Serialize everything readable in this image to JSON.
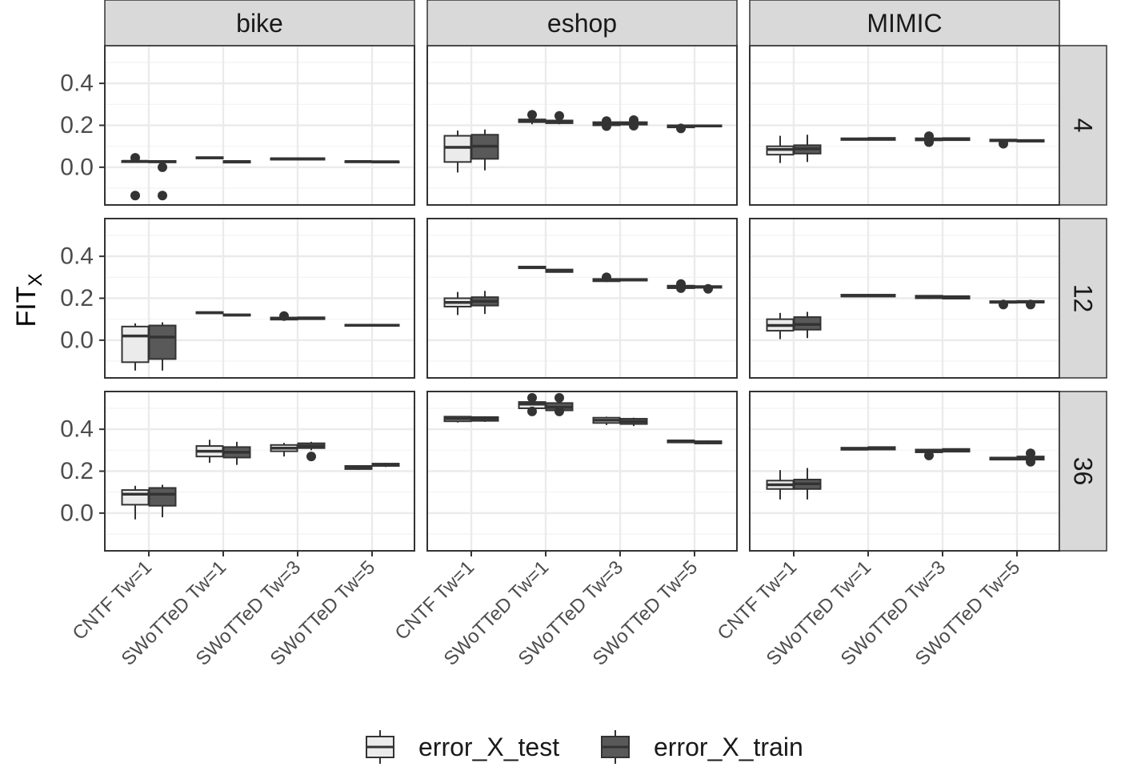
{
  "chart_data": {
    "type": "boxplot",
    "ylabel": "FIT",
    "ylabel_subscript": "X",
    "ylim": [
      -0.18,
      0.58
    ],
    "y_ticks": [
      0.0,
      0.2,
      0.4
    ],
    "y_tick_labels": [
      "0.0",
      "0.2",
      "0.4"
    ],
    "grid": true,
    "legend_position": "bottom",
    "categories": [
      "CNTF Tw=1",
      "SWoTTeD Tw=1",
      "SWoTTeD Tw=3",
      "SWoTTeD Tw=5"
    ],
    "column_facets": [
      "bike",
      "eshop",
      "MIMIC"
    ],
    "row_facets": [
      "4",
      "12",
      "36"
    ],
    "series": [
      {
        "name": "error_X_test",
        "color": "#ebebeb"
      },
      {
        "name": "error_X_train",
        "color": "#595959"
      }
    ],
    "panels": [
      {
        "col": 0,
        "row": 0,
        "boxes": [
          [
            {
              "q1": 0.024,
              "med": 0.028,
              "q3": 0.03,
              "lo": 0.022,
              "hi": 0.032,
              "out": [
                0.045,
                -0.135
              ]
            },
            {
              "q1": 0.023,
              "med": 0.027,
              "q3": 0.03,
              "lo": 0.022,
              "hi": 0.031,
              "out": [
                0.0,
                -0.135
              ]
            }
          ],
          [
            {
              "q1": 0.042,
              "med": 0.045,
              "q3": 0.048,
              "lo": 0.04,
              "hi": 0.05,
              "out": []
            },
            {
              "q1": 0.022,
              "med": 0.026,
              "q3": 0.03,
              "lo": 0.02,
              "hi": 0.032,
              "out": []
            }
          ],
          [
            {
              "q1": 0.036,
              "med": 0.04,
              "q3": 0.043,
              "lo": 0.034,
              "hi": 0.046,
              "out": []
            },
            {
              "q1": 0.036,
              "med": 0.04,
              "q3": 0.043,
              "lo": 0.035,
              "hi": 0.045,
              "out": []
            }
          ],
          [
            {
              "q1": 0.025,
              "med": 0.027,
              "q3": 0.029,
              "lo": 0.024,
              "hi": 0.03,
              "out": []
            },
            {
              "q1": 0.024,
              "med": 0.026,
              "q3": 0.028,
              "lo": 0.023,
              "hi": 0.029,
              "out": []
            }
          ]
        ]
      },
      {
        "col": 1,
        "row": 0,
        "boxes": [
          [
            {
              "q1": 0.025,
              "med": 0.095,
              "q3": 0.15,
              "lo": -0.025,
              "hi": 0.175,
              "out": []
            },
            {
              "q1": 0.04,
              "med": 0.1,
              "q3": 0.155,
              "lo": -0.015,
              "hi": 0.18,
              "out": []
            }
          ],
          [
            {
              "q1": 0.215,
              "med": 0.222,
              "q3": 0.228,
              "lo": 0.205,
              "hi": 0.235,
              "out": [
                0.25
              ]
            },
            {
              "q1": 0.21,
              "med": 0.218,
              "q3": 0.223,
              "lo": 0.205,
              "hi": 0.228,
              "out": [
                0.245
              ]
            }
          ],
          [
            {
              "q1": 0.2,
              "med": 0.208,
              "q3": 0.215,
              "lo": 0.195,
              "hi": 0.218,
              "out": [
                0.22,
                0.196
              ]
            },
            {
              "q1": 0.203,
              "med": 0.21,
              "q3": 0.215,
              "lo": 0.2,
              "hi": 0.218,
              "out": [
                0.225,
                0.198
              ]
            }
          ],
          [
            {
              "q1": 0.19,
              "med": 0.196,
              "q3": 0.2,
              "lo": 0.186,
              "hi": 0.203,
              "out": [
                0.185
              ]
            },
            {
              "q1": 0.194,
              "med": 0.197,
              "q3": 0.2,
              "lo": 0.192,
              "hi": 0.202,
              "out": []
            }
          ]
        ]
      },
      {
        "col": 2,
        "row": 0,
        "boxes": [
          [
            {
              "q1": 0.06,
              "med": 0.085,
              "q3": 0.1,
              "lo": 0.02,
              "hi": 0.15,
              "out": []
            },
            {
              "q1": 0.065,
              "med": 0.088,
              "q3": 0.105,
              "lo": 0.025,
              "hi": 0.155,
              "out": []
            }
          ],
          [
            {
              "q1": 0.13,
              "med": 0.134,
              "q3": 0.138,
              "lo": 0.128,
              "hi": 0.14,
              "out": []
            },
            {
              "q1": 0.13,
              "med": 0.135,
              "q3": 0.14,
              "lo": 0.128,
              "hi": 0.142,
              "out": []
            }
          ],
          [
            {
              "q1": 0.128,
              "med": 0.133,
              "q3": 0.138,
              "lo": 0.125,
              "hi": 0.142,
              "out": [
                0.148,
                0.12
              ]
            },
            {
              "q1": 0.129,
              "med": 0.134,
              "q3": 0.139,
              "lo": 0.127,
              "hi": 0.141,
              "out": []
            }
          ],
          [
            {
              "q1": 0.124,
              "med": 0.128,
              "q3": 0.132,
              "lo": 0.12,
              "hi": 0.135,
              "out": [
                0.112
              ]
            },
            {
              "q1": 0.122,
              "med": 0.126,
              "q3": 0.13,
              "lo": 0.12,
              "hi": 0.132,
              "out": []
            }
          ]
        ]
      },
      {
        "col": 0,
        "row": 1,
        "boxes": [
          [
            {
              "q1": -0.105,
              "med": 0.02,
              "q3": 0.065,
              "lo": -0.145,
              "hi": 0.08,
              "out": []
            },
            {
              "q1": -0.09,
              "med": 0.015,
              "q3": 0.07,
              "lo": -0.145,
              "hi": 0.085,
              "out": []
            }
          ],
          [
            {
              "q1": 0.128,
              "med": 0.131,
              "q3": 0.134,
              "lo": 0.126,
              "hi": 0.136,
              "out": []
            },
            {
              "q1": 0.117,
              "med": 0.12,
              "q3": 0.123,
              "lo": 0.115,
              "hi": 0.125,
              "out": []
            }
          ],
          [
            {
              "q1": 0.098,
              "med": 0.103,
              "q3": 0.108,
              "lo": 0.095,
              "hi": 0.11,
              "out": [
                0.115
              ]
            },
            {
              "q1": 0.1,
              "med": 0.105,
              "q3": 0.109,
              "lo": 0.097,
              "hi": 0.112,
              "out": []
            }
          ],
          [
            {
              "q1": 0.068,
              "med": 0.071,
              "q3": 0.074,
              "lo": 0.066,
              "hi": 0.076,
              "out": []
            },
            {
              "q1": 0.068,
              "med": 0.071,
              "q3": 0.074,
              "lo": 0.066,
              "hi": 0.076,
              "out": []
            }
          ]
        ]
      },
      {
        "col": 1,
        "row": 1,
        "boxes": [
          [
            {
              "q1": 0.16,
              "med": 0.18,
              "q3": 0.2,
              "lo": 0.12,
              "hi": 0.23,
              "out": []
            },
            {
              "q1": 0.165,
              "med": 0.185,
              "q3": 0.205,
              "lo": 0.125,
              "hi": 0.235,
              "out": []
            }
          ],
          [
            {
              "q1": 0.343,
              "med": 0.347,
              "q3": 0.351,
              "lo": 0.34,
              "hi": 0.353,
              "out": []
            },
            {
              "q1": 0.325,
              "med": 0.33,
              "q3": 0.337,
              "lo": 0.322,
              "hi": 0.34,
              "out": []
            }
          ],
          [
            {
              "q1": 0.281,
              "med": 0.287,
              "q3": 0.292,
              "lo": 0.278,
              "hi": 0.295,
              "out": [
                0.3
              ]
            },
            {
              "q1": 0.284,
              "med": 0.288,
              "q3": 0.292,
              "lo": 0.282,
              "hi": 0.295,
              "out": []
            }
          ],
          [
            {
              "q1": 0.248,
              "med": 0.254,
              "q3": 0.26,
              "lo": 0.244,
              "hi": 0.264,
              "out": [
                0.268,
                0.248
              ]
            },
            {
              "q1": 0.25,
              "med": 0.254,
              "q3": 0.258,
              "lo": 0.248,
              "hi": 0.261,
              "out": [
                0.245
              ]
            }
          ]
        ]
      },
      {
        "col": 2,
        "row": 1,
        "boxes": [
          [
            {
              "q1": 0.045,
              "med": 0.07,
              "q3": 0.1,
              "lo": 0.005,
              "hi": 0.13,
              "out": []
            },
            {
              "q1": 0.05,
              "med": 0.075,
              "q3": 0.11,
              "lo": 0.01,
              "hi": 0.135,
              "out": []
            }
          ],
          [
            {
              "q1": 0.208,
              "med": 0.212,
              "q3": 0.217,
              "lo": 0.205,
              "hi": 0.22,
              "out": []
            },
            {
              "q1": 0.208,
              "med": 0.212,
              "q3": 0.217,
              "lo": 0.205,
              "hi": 0.22,
              "out": []
            }
          ],
          [
            {
              "q1": 0.2,
              "med": 0.206,
              "q3": 0.212,
              "lo": 0.196,
              "hi": 0.215,
              "out": []
            },
            {
              "q1": 0.198,
              "med": 0.204,
              "q3": 0.21,
              "lo": 0.195,
              "hi": 0.213,
              "out": []
            }
          ],
          [
            {
              "q1": 0.178,
              "med": 0.182,
              "q3": 0.186,
              "lo": 0.175,
              "hi": 0.189,
              "out": [
                0.17
              ]
            },
            {
              "q1": 0.179,
              "med": 0.183,
              "q3": 0.187,
              "lo": 0.176,
              "hi": 0.19,
              "out": [
                0.17
              ]
            }
          ]
        ]
      },
      {
        "col": 0,
        "row": 2,
        "boxes": [
          [
            {
              "q1": 0.04,
              "med": 0.09,
              "q3": 0.11,
              "lo": -0.03,
              "hi": 0.13,
              "out": []
            },
            {
              "q1": 0.035,
              "med": 0.09,
              "q3": 0.12,
              "lo": -0.02,
              "hi": 0.135,
              "out": []
            }
          ],
          [
            {
              "q1": 0.27,
              "med": 0.295,
              "q3": 0.32,
              "lo": 0.24,
              "hi": 0.35,
              "out": []
            },
            {
              "q1": 0.265,
              "med": 0.29,
              "q3": 0.315,
              "lo": 0.23,
              "hi": 0.34,
              "out": []
            }
          ],
          [
            {
              "q1": 0.295,
              "med": 0.31,
              "q3": 0.325,
              "lo": 0.27,
              "hi": 0.335,
              "out": []
            },
            {
              "q1": 0.31,
              "med": 0.32,
              "q3": 0.333,
              "lo": 0.3,
              "hi": 0.34,
              "out": [
                0.27
              ]
            }
          ],
          [
            {
              "q1": 0.21,
              "med": 0.218,
              "q3": 0.225,
              "lo": 0.206,
              "hi": 0.228,
              "out": []
            },
            {
              "q1": 0.225,
              "med": 0.23,
              "q3": 0.236,
              "lo": 0.22,
              "hi": 0.24,
              "out": []
            }
          ]
        ]
      },
      {
        "col": 1,
        "row": 2,
        "boxes": [
          [
            {
              "q1": 0.438,
              "med": 0.45,
              "q3": 0.46,
              "lo": 0.432,
              "hi": 0.463,
              "out": []
            },
            {
              "q1": 0.44,
              "med": 0.45,
              "q3": 0.458,
              "lo": 0.435,
              "hi": 0.462,
              "out": []
            }
          ],
          [
            {
              "q1": 0.5,
              "med": 0.52,
              "q3": 0.53,
              "lo": 0.49,
              "hi": 0.535,
              "out": [
                0.55,
                0.485
              ]
            },
            {
              "q1": 0.49,
              "med": 0.505,
              "q3": 0.525,
              "lo": 0.478,
              "hi": 0.535,
              "out": [
                0.55,
                0.485
              ]
            }
          ],
          [
            {
              "q1": 0.43,
              "med": 0.443,
              "q3": 0.455,
              "lo": 0.42,
              "hi": 0.46,
              "out": []
            },
            {
              "q1": 0.425,
              "med": 0.437,
              "q3": 0.45,
              "lo": 0.415,
              "hi": 0.455,
              "out": []
            }
          ],
          [
            {
              "q1": 0.337,
              "med": 0.342,
              "q3": 0.347,
              "lo": 0.335,
              "hi": 0.349,
              "out": []
            },
            {
              "q1": 0.332,
              "med": 0.337,
              "q3": 0.343,
              "lo": 0.329,
              "hi": 0.346,
              "out": []
            }
          ]
        ]
      },
      {
        "col": 2,
        "row": 2,
        "boxes": [
          [
            {
              "q1": 0.115,
              "med": 0.135,
              "q3": 0.155,
              "lo": 0.065,
              "hi": 0.205,
              "out": []
            },
            {
              "q1": 0.115,
              "med": 0.14,
              "q3": 0.16,
              "lo": 0.065,
              "hi": 0.215,
              "out": []
            }
          ],
          [
            {
              "q1": 0.302,
              "med": 0.307,
              "q3": 0.312,
              "lo": 0.299,
              "hi": 0.315,
              "out": []
            },
            {
              "q1": 0.303,
              "med": 0.309,
              "q3": 0.315,
              "lo": 0.3,
              "hi": 0.318,
              "out": []
            }
          ],
          [
            {
              "q1": 0.29,
              "med": 0.297,
              "q3": 0.303,
              "lo": 0.286,
              "hi": 0.306,
              "out": [
                0.275
              ]
            },
            {
              "q1": 0.293,
              "med": 0.3,
              "q3": 0.306,
              "lo": 0.29,
              "hi": 0.309,
              "out": []
            }
          ],
          [
            {
              "q1": 0.255,
              "med": 0.26,
              "q3": 0.265,
              "lo": 0.252,
              "hi": 0.268,
              "out": []
            },
            {
              "q1": 0.255,
              "med": 0.262,
              "q3": 0.27,
              "lo": 0.25,
              "hi": 0.275,
              "out": [
                0.285,
                0.245
              ]
            }
          ]
        ]
      }
    ]
  }
}
